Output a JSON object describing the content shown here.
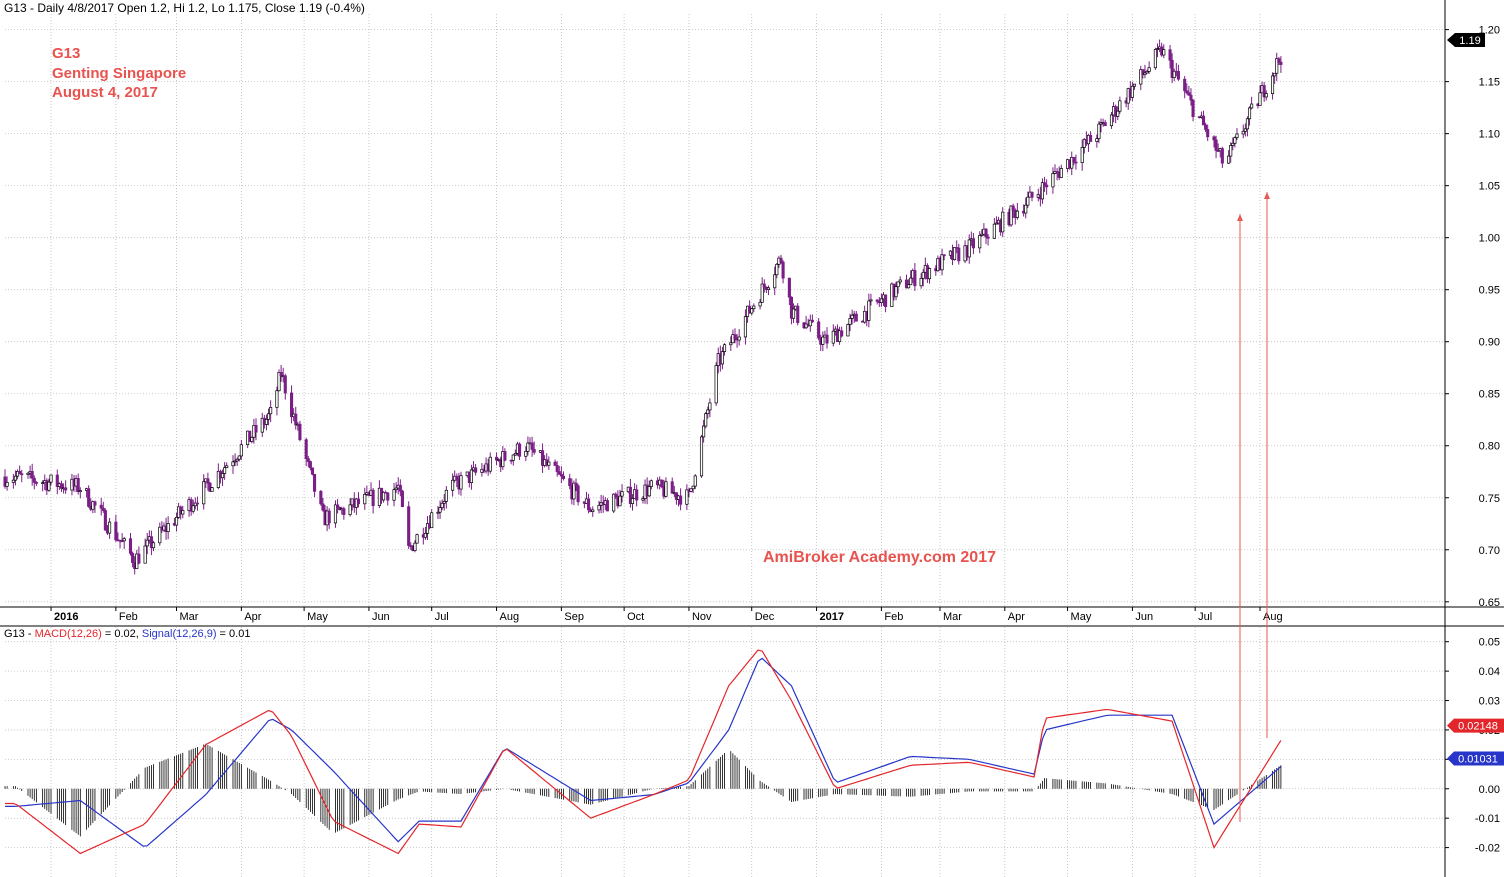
{
  "header": {
    "price_line": "G13 - Daily 4/8/2017 Open 1.2, Hi 1.2, Lo 1.175, Close 1.19 (-0.4%)",
    "macd_prefix": "G13 - ",
    "macd_label": "MACD(12,26)",
    "macd_value": " = 0.02, ",
    "signal_label": "Signal(12,26,9)",
    "signal_value": " = 0.01"
  },
  "annotation": {
    "symbol": "G13",
    "company": "Genting Singapore",
    "date": "August 4, 2017",
    "watermark": "AmiBroker Academy.com 2017"
  },
  "colors": {
    "candle": "#7a1f86",
    "macd": "#e3262b",
    "signal": "#2736c8",
    "histogram": "#000000",
    "annotation": "#e8534f",
    "grid": "#bdbdbd",
    "arrow": "#e85a55"
  },
  "chart_data": [
    {
      "type": "candlestick",
      "title": "G13 Genting Singapore daily price",
      "x_tick_labels": [
        "2016",
        "Feb",
        "Mar",
        "Apr",
        "May",
        "Jun",
        "Jul",
        "Aug",
        "Sep",
        "Oct",
        "Nov",
        "Dec",
        "2017",
        "Feb",
        "Mar",
        "Apr",
        "May",
        "Jun",
        "Jul",
        "Aug"
      ],
      "y_ticks": [
        "1.20",
        "1.15",
        "1.10",
        "1.05",
        "1.00",
        "0.95",
        "0.90",
        "0.85",
        "0.80",
        "0.75",
        "0.70",
        "0.65"
      ],
      "ylim": [
        0.645,
        1.215
      ],
      "grid": true,
      "last_price_label": "1.19",
      "approx_closes": {
        "dates": [
          "2015-12",
          "2016-01",
          "2016-02-10",
          "2016-03",
          "2016-04",
          "2016-04-20",
          "2016-05-10",
          "2016-06",
          "2016-06-20",
          "2016-07-10",
          "2016-08",
          "2016-09",
          "2016-10",
          "2016-11-01",
          "2016-11-15",
          "2016-12",
          "2016-12-20",
          "2017-01-05",
          "2017-02",
          "2017-03",
          "2017-04",
          "2017-05",
          "2017-06",
          "2017-07",
          "2017-08"
        ],
        "values": [
          0.77,
          0.76,
          0.69,
          0.76,
          0.83,
          0.87,
          0.73,
          0.76,
          0.7,
          0.76,
          0.8,
          0.74,
          0.76,
          0.75,
          0.88,
          0.98,
          0.93,
          0.9,
          0.96,
          0.99,
          1.04,
          1.1,
          1.18,
          1.07,
          1.19
        ]
      }
    },
    {
      "type": "line",
      "title": "MACD(12,26) / Signal(12,26,9)",
      "series_names": [
        "MACD(12,26)",
        "Signal(12,26,9)"
      ],
      "y_ticks": [
        "0.05",
        "0.04",
        "0.03",
        "0.02",
        "0.01",
        "0.00",
        "-0.01",
        "-0.02"
      ],
      "ylim": [
        -0.03,
        0.055
      ],
      "last_values": {
        "macd": "0.02148",
        "signal": "0.01031"
      },
      "macd_points": {
        "dates": [
          "2015-12",
          "2016-01",
          "2016-02",
          "2016-03",
          "2016-04",
          "2016-04-25",
          "2016-05-15",
          "2016-06",
          "2016-06-25",
          "2016-07-15",
          "2016-08-05",
          "2016-09",
          "2016-10",
          "2016-11-01",
          "2016-11-20",
          "2016-12-05",
          "2016-12-20",
          "2017-01-10",
          "2017-02",
          "2017-03",
          "2017-04",
          "2017-04-20",
          "2017-05-20",
          "2017-06-20",
          "2017-07-10",
          "2017-08"
        ],
        "values": [
          -0.005,
          -0.022,
          -0.012,
          0.015,
          0.027,
          0.018,
          -0.011,
          -0.022,
          -0.012,
          -0.013,
          0.014,
          -0.01,
          -0.002,
          0.003,
          0.035,
          0.048,
          0.03,
          0.0,
          0.008,
          0.009,
          0.004,
          0.024,
          0.027,
          0.023,
          -0.02,
          0.021
        ]
      },
      "signal_points": {
        "dates": [
          "2015-12",
          "2016-01",
          "2016-02",
          "2016-03",
          "2016-04",
          "2016-04-25",
          "2016-05-15",
          "2016-06",
          "2016-06-25",
          "2016-07-15",
          "2016-08-05",
          "2016-09",
          "2016-10",
          "2016-11-01",
          "2016-11-20",
          "2016-12-05",
          "2016-12-20",
          "2017-01-10",
          "2017-02",
          "2017-03",
          "2017-04",
          "2017-04-20",
          "2017-05-20",
          "2017-06-20",
          "2017-07-10",
          "2017-08"
        ],
        "values": [
          -0.006,
          -0.004,
          -0.02,
          -0.002,
          0.024,
          0.02,
          0.006,
          -0.018,
          -0.011,
          -0.011,
          0.014,
          -0.004,
          -0.002,
          0.002,
          0.02,
          0.045,
          0.035,
          0.002,
          0.011,
          0.01,
          0.005,
          0.02,
          0.025,
          0.025,
          -0.012,
          0.01
        ]
      }
    }
  ]
}
